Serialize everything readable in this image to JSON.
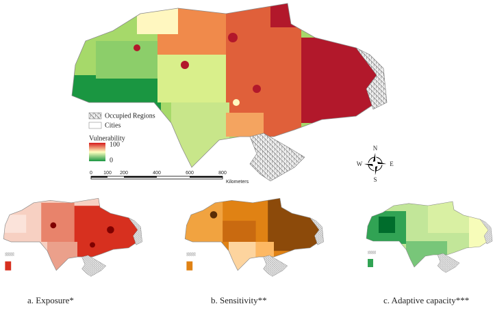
{
  "legend": {
    "occupied": "Occupied Regions",
    "cities": "Cities",
    "title": "Vulnerability",
    "max": "100",
    "min": "0"
  },
  "scale_bar": {
    "ticks": [
      "0",
      "100",
      "200",
      "400",
      "600",
      "800"
    ],
    "unit": "Kilometers"
  },
  "compass": {
    "n": "N",
    "e": "E",
    "s": "S",
    "w": "W"
  },
  "panels": [
    {
      "caption": "a. Exposure*"
    },
    {
      "caption": "b. Sensitivity**"
    },
    {
      "caption": "c. Adaptive capacity***"
    }
  ]
}
